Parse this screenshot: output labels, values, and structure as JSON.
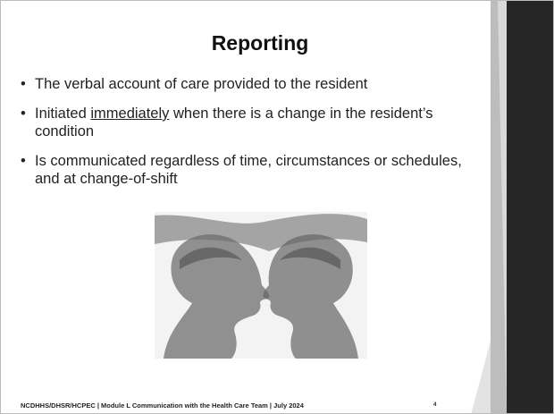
{
  "slide": {
    "title": "Reporting",
    "bullets": [
      {
        "segments": [
          {
            "text": "The verbal account of care provided to the resident"
          }
        ]
      },
      {
        "segments": [
          {
            "text": "Initiated "
          },
          {
            "text": "immediately",
            "underline": true
          },
          {
            "text": " when there is a change in the resident’s condition"
          }
        ]
      },
      {
        "segments": [
          {
            "text": "Is communicated regardless of time, circumstances or schedules, and at change-of-shift"
          }
        ]
      }
    ],
    "footer": "NCDHHS/DHSR/HCPEC | Module L Communication with the Health Care Team | July 2024",
    "page_number": "4"
  }
}
